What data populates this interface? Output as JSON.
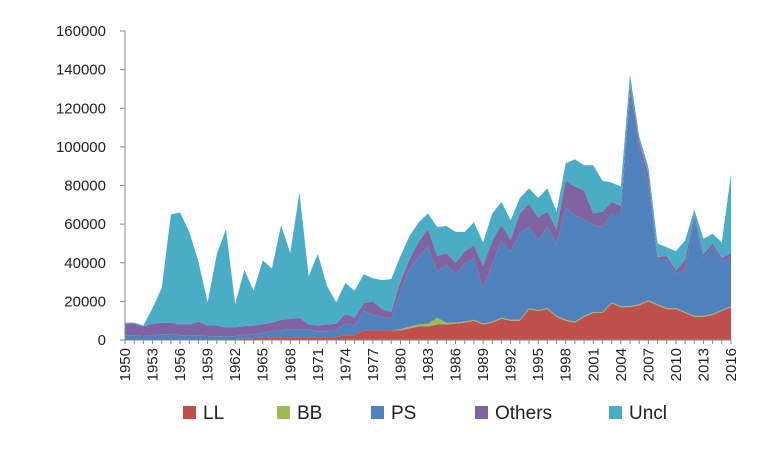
{
  "chart_data": {
    "type": "area",
    "stacked": true,
    "x": [
      1950,
      1951,
      1952,
      1953,
      1954,
      1955,
      1956,
      1957,
      1958,
      1959,
      1960,
      1961,
      1962,
      1963,
      1964,
      1965,
      1966,
      1967,
      1968,
      1969,
      1970,
      1971,
      1972,
      1973,
      1974,
      1975,
      1976,
      1977,
      1978,
      1979,
      1980,
      1981,
      1982,
      1983,
      1984,
      1985,
      1986,
      1987,
      1988,
      1989,
      1990,
      1991,
      1992,
      1993,
      1994,
      1995,
      1996,
      1997,
      1998,
      1999,
      2000,
      2001,
      2002,
      2003,
      2004,
      2005,
      2006,
      2007,
      2008,
      2009,
      2010,
      2011,
      2012,
      2013,
      2014,
      2015,
      2016
    ],
    "x_tick_labels": [
      "1950",
      "1953",
      "1956",
      "1959",
      "1962",
      "1965",
      "1968",
      "1971",
      "1974",
      "1977",
      "1980",
      "1983",
      "1986",
      "1989",
      "1992",
      "1995",
      "1998",
      "2001",
      "2004",
      "2007",
      "2010",
      "2013",
      "2016"
    ],
    "y_tick_labels": [
      "0",
      "20000",
      "40000",
      "60000",
      "80000",
      "100000",
      "120000",
      "140000",
      "160000"
    ],
    "ylim": [
      0,
      160000
    ],
    "grid": false,
    "legend_position": "bottom",
    "series": [
      {
        "name": "LL",
        "color": "#c0504d",
        "values": [
          500,
          500,
          500,
          500,
          500,
          500,
          500,
          500,
          500,
          500,
          500,
          500,
          500,
          800,
          1000,
          1200,
          1500,
          1500,
          1500,
          1500,
          1500,
          1500,
          1500,
          1500,
          2500,
          2500,
          5000,
          5000,
          5000,
          5000,
          5000,
          6000,
          7000,
          7000,
          8000,
          8000,
          8500,
          9000,
          10000,
          8000,
          9000,
          11000,
          10000,
          10000,
          16000,
          15000,
          16000,
          12000,
          10000,
          9000,
          12000,
          14000,
          14000,
          19000,
          17000,
          17000,
          18000,
          20000,
          18000,
          16000,
          16000,
          14000,
          12000,
          12000,
          13000,
          15000,
          17000
        ]
      },
      {
        "name": "BB",
        "color": "#9bbb59",
        "values": [
          0,
          0,
          0,
          0,
          0,
          0,
          0,
          0,
          0,
          0,
          0,
          0,
          0,
          0,
          0,
          0,
          0,
          0,
          0,
          0,
          0,
          0,
          0,
          0,
          0,
          0,
          0,
          0,
          0,
          0,
          500,
          1000,
          1000,
          1500,
          3500,
          1000,
          500,
          500,
          500,
          500,
          500,
          500,
          500,
          500,
          500,
          500,
          500,
          500,
          500,
          500,
          500,
          500,
          500,
          500,
          500,
          500,
          500,
          500,
          500,
          500,
          500,
          500,
          500,
          500,
          500,
          500,
          500
        ]
      },
      {
        "name": "PS",
        "color": "#4f81bd",
        "values": [
          2000,
          2000,
          1500,
          2000,
          2500,
          2500,
          2000,
          2000,
          2000,
          1500,
          1500,
          1500,
          1500,
          2000,
          2000,
          2500,
          3000,
          3500,
          4000,
          4000,
          4000,
          3000,
          3000,
          3500,
          6000,
          5000,
          10000,
          8000,
          7000,
          6000,
          20000,
          30000,
          35000,
          40000,
          24000,
          30000,
          25000,
          30000,
          32000,
          18000,
          30000,
          40000,
          35000,
          45000,
          42000,
          36000,
          42000,
          37000,
          58000,
          55000,
          50000,
          45000,
          44000,
          46000,
          48000,
          110000,
          80000,
          60000,
          23000,
          25000,
          18000,
          22000,
          50000,
          30000,
          35000,
          25000,
          25000
        ]
      },
      {
        "name": "Others",
        "color": "#8064a2",
        "values": [
          6000,
          6000,
          5000,
          6000,
          6000,
          6000,
          5500,
          5500,
          7000,
          5500,
          5500,
          4500,
          4500,
          4500,
          4500,
          4500,
          4500,
          5500,
          5500,
          6000,
          2500,
          3000,
          3500,
          3500,
          5000,
          4000,
          4000,
          7000,
          4000,
          3500,
          5000,
          5000,
          8000,
          9000,
          8000,
          6000,
          6000,
          6500,
          6500,
          12000,
          12000,
          8000,
          6500,
          10000,
          12000,
          12000,
          8000,
          8000,
          14000,
          15000,
          15000,
          6000,
          8000,
          6000,
          4000,
          4000,
          4000,
          5000,
          1500,
          2000,
          1500,
          5000,
          2000,
          2000,
          1500,
          2000,
          2500
        ]
      },
      {
        "name": "Uncl",
        "color": "#4bacc6",
        "values": [
          500,
          500,
          500,
          8000,
          18000,
          56000,
          58000,
          48000,
          31000,
          12000,
          37000,
          51000,
          12000,
          29000,
          18000,
          33000,
          28000,
          49000,
          34000,
          65000,
          25000,
          37000,
          20000,
          11000,
          16000,
          14000,
          15000,
          12000,
          15000,
          17000,
          13000,
          12000,
          10000,
          8000,
          15000,
          14000,
          16000,
          10000,
          12000,
          12000,
          14000,
          12000,
          10000,
          8000,
          8000,
          10000,
          12000,
          9000,
          9000,
          14000,
          13000,
          25000,
          16000,
          10000,
          10000,
          6000,
          3000,
          4000,
          7000,
          4500,
          10000,
          10000,
          3000,
          8000,
          5000,
          8000,
          41000
        ]
      }
    ]
  }
}
